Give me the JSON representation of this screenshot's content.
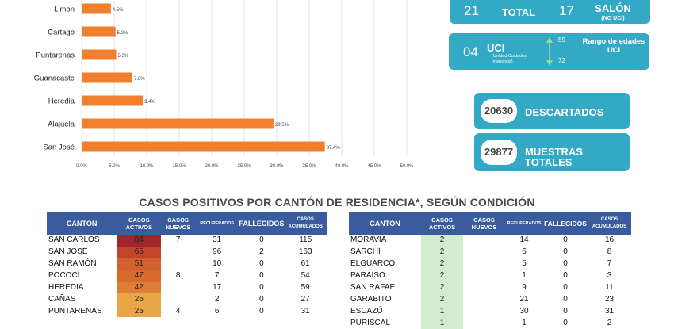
{
  "chart_data": {
    "type": "bar",
    "orientation": "horizontal",
    "categories": [
      "Limon",
      "Cartago",
      "Puntarenas",
      "Guanacaste",
      "Heredia",
      "Alajuela",
      "San José"
    ],
    "values": [
      4.5,
      5.2,
      5.3,
      7.8,
      9.4,
      29.5,
      37.4
    ],
    "value_labels": [
      "4.5%",
      "5.2%",
      "5.3%",
      "7.8%",
      "9.4%",
      "29.5%",
      "37.4%"
    ],
    "x_ticks": [
      "0.0%",
      "5.0%",
      "10.0%",
      "15.0%",
      "20.0%",
      "25.0%",
      "30.0%",
      "35.0%",
      "40.0%",
      "45.0%",
      "50.0%"
    ],
    "xlim": [
      0,
      50
    ],
    "color": "#f07f2e",
    "grid": true
  },
  "stats": {
    "total_value": "21",
    "total_label": "TOTAL",
    "salon_value": "17",
    "salon_label": "SALÓN",
    "salon_sub": "(NO UCI)",
    "uci_value": "04",
    "uci_label": "UCI",
    "uci_sub": "(Unidad Cuidados Intensivos)",
    "age_max": "59",
    "age_min": "72",
    "age_label": "Rango de edades UCI",
    "descartados_value": "20630",
    "descartados_label": "DESCARTADOS",
    "muestras_value": "29877",
    "muestras_label": "MUESTRAS TOTALES",
    "box_color": "#33a9c6"
  },
  "section_title": "CASOS POSITIVOS POR CANTÓN DE RESIDENCIA*, SEGÚN CONDICIÓN",
  "headers": {
    "canton": "CANTÓN",
    "activos": "CASOS ACTIVOS",
    "nuevos": "CASOS NUEVOS",
    "recuperados": "RECUPERADOS",
    "fallecidos": "FALLECIDOS",
    "acumulados": "CASOS ACUMULADOS",
    "header_color": "#3a5b9d"
  },
  "table_left": [
    {
      "canton": "SAN CARLOS",
      "activos": "84",
      "nuevos": "7",
      "recuperados": "31",
      "fallecidos": "0",
      "acumulados": "115",
      "color": "#a3252c"
    },
    {
      "canton": "SAN JOSÉ",
      "activos": "65",
      "nuevos": "",
      "recuperados": "96",
      "fallecidos": "2",
      "acumulados": "163",
      "color": "#c4442b"
    },
    {
      "canton": "SAN RAMÓN",
      "activos": "51",
      "nuevos": "",
      "recuperados": "10",
      "fallecidos": "0",
      "acumulados": "61",
      "color": "#d3612f"
    },
    {
      "canton": "POCOCÍ",
      "activos": "47",
      "nuevos": "8",
      "recuperados": "7",
      "fallecidos": "0",
      "acumulados": "54",
      "color": "#d86a30"
    },
    {
      "canton": "HEREDIA",
      "activos": "42",
      "nuevos": "",
      "recuperados": "17",
      "fallecidos": "0",
      "acumulados": "59",
      "color": "#de7d35"
    },
    {
      "canton": "CAÑAS",
      "activos": "25",
      "nuevos": "",
      "recuperados": "2",
      "fallecidos": "0",
      "acumulados": "27",
      "color": "#eaa547"
    },
    {
      "canton": "PUNTARENAS",
      "activos": "25",
      "nuevos": "4",
      "recuperados": "6",
      "fallecidos": "0",
      "acumulados": "31",
      "color": "#eaa547"
    }
  ],
  "table_right": [
    {
      "canton": "MORAVIA",
      "activos": "2",
      "nuevos": "",
      "recuperados": "14",
      "fallecidos": "0",
      "acumulados": "16",
      "color": "#d3ebcf"
    },
    {
      "canton": "SARCHÍ",
      "activos": "2",
      "nuevos": "",
      "recuperados": "6",
      "fallecidos": "0",
      "acumulados": "8",
      "color": "#d3ebcf"
    },
    {
      "canton": "ELGUARCO",
      "activos": "2",
      "nuevos": "",
      "recuperados": "5",
      "fallecidos": "0",
      "acumulados": "7",
      "color": "#d3ebcf"
    },
    {
      "canton": "PARAISO",
      "activos": "2",
      "nuevos": "",
      "recuperados": "1",
      "fallecidos": "0",
      "acumulados": "3",
      "color": "#d3ebcf"
    },
    {
      "canton": "SAN RAFAEL",
      "activos": "2",
      "nuevos": "",
      "recuperados": "9",
      "fallecidos": "0",
      "acumulados": "11",
      "color": "#d3ebcf"
    },
    {
      "canton": "GARABITO",
      "activos": "2",
      "nuevos": "",
      "recuperados": "21",
      "fallecidos": "0",
      "acumulados": "23",
      "color": "#d3ebcf"
    },
    {
      "canton": "ESCAZÚ",
      "activos": "1",
      "nuevos": "",
      "recuperados": "30",
      "fallecidos": "0",
      "acumulados": "31",
      "color": "#d3ebcf"
    },
    {
      "canton": "PURISCAL",
      "activos": "1",
      "nuevos": "",
      "recuperados": "1",
      "fallecidos": "0",
      "acumulados": "2",
      "color": "#d3ebcf"
    }
  ]
}
